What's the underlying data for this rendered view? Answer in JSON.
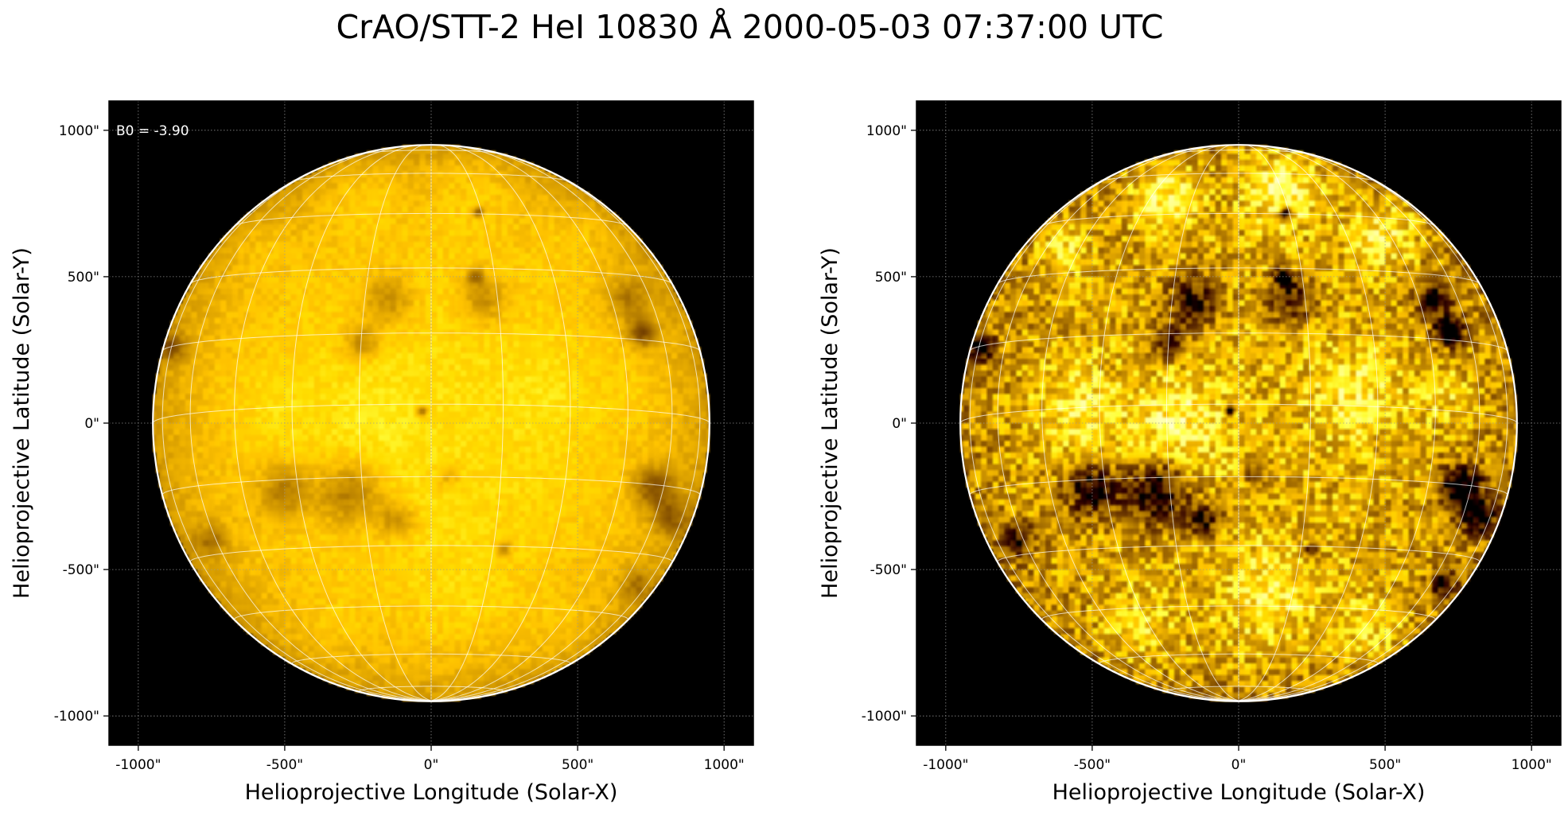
{
  "figure": {
    "title": "CrAO/STT-2 HeI 10830 Å 2000-05-03 07:37:00 UTC"
  },
  "panels": [
    {
      "id": "left",
      "annotation": "B0 = -3.90",
      "xlabel": "Helioprojective Longitude (Solar-X)",
      "ylabel": "Helioprojective Latitude (Solar-Y)",
      "xticks": [
        "-1000\"",
        "-500\"",
        "0\"",
        "500\"",
        "1000\""
      ],
      "yticks": [
        "1000\"",
        "500\"",
        "0\"",
        "-500\"",
        "-1000\""
      ],
      "contrast": "low"
    },
    {
      "id": "right",
      "annotation": "",
      "xlabel": "Helioprojective Longitude (Solar-X)",
      "ylabel": "Helioprojective Latitude (Solar-Y)",
      "xticks": [
        "-1000\"",
        "-500\"",
        "0\"",
        "500\"",
        "1000\""
      ],
      "yticks": [
        "1000\"",
        "500\"",
        "0\"",
        "-500\"",
        "-1000\""
      ],
      "contrast": "high"
    }
  ],
  "image": {
    "colormap": "orange-heat",
    "background_color": "#000000",
    "limb_color": "#ffffff",
    "grid_color": "#ffffff",
    "solar_radius_arcsec": 950,
    "axis_range_arcsec": [
      -1100,
      1100
    ],
    "coordinate_grid": "heliographic",
    "grid_spacing_deg": 15
  },
  "dark_features": [
    {
      "x": 160,
      "y": 720,
      "r": 18,
      "strength": 0.9
    },
    {
      "x": -150,
      "y": 420,
      "r": 90,
      "strength": 0.45
    },
    {
      "x": 180,
      "y": 420,
      "r": 80,
      "strength": 0.45
    },
    {
      "x": 150,
      "y": 500,
      "r": 30,
      "strength": 0.6
    },
    {
      "x": 720,
      "y": 310,
      "r": 45,
      "strength": 0.85
    },
    {
      "x": 670,
      "y": 420,
      "r": 70,
      "strength": 0.45
    },
    {
      "x": -880,
      "y": 260,
      "r": 45,
      "strength": 0.6
    },
    {
      "x": -240,
      "y": 280,
      "r": 60,
      "strength": 0.5
    },
    {
      "x": -30,
      "y": 40,
      "r": 16,
      "strength": 0.85
    },
    {
      "x": -500,
      "y": -230,
      "r": 90,
      "strength": 0.55
    },
    {
      "x": -280,
      "y": -240,
      "r": 110,
      "strength": 0.6
    },
    {
      "x": -120,
      "y": -330,
      "r": 60,
      "strength": 0.45
    },
    {
      "x": 760,
      "y": -220,
      "r": 70,
      "strength": 0.7
    },
    {
      "x": 820,
      "y": -320,
      "r": 60,
      "strength": 0.55
    },
    {
      "x": 250,
      "y": -430,
      "r": 22,
      "strength": 0.6
    },
    {
      "x": -750,
      "y": -400,
      "r": 55,
      "strength": 0.45
    },
    {
      "x": 700,
      "y": -550,
      "r": 50,
      "strength": 0.4
    },
    {
      "x": 60,
      "y": -180,
      "r": 40,
      "strength": 0.3
    }
  ],
  "bright_features": [
    {
      "x": -250,
      "y": 780,
      "r": 120,
      "strength": 0.7
    },
    {
      "x": 150,
      "y": 800,
      "r": 140,
      "strength": 0.7
    },
    {
      "x": 500,
      "y": 650,
      "r": 120,
      "strength": 0.6
    },
    {
      "x": -600,
      "y": 600,
      "r": 100,
      "strength": 0.55
    },
    {
      "x": -550,
      "y": 50,
      "r": 150,
      "strength": 0.5
    },
    {
      "x": -200,
      "y": 0,
      "r": 160,
      "strength": 0.55
    },
    {
      "x": 400,
      "y": 100,
      "r": 150,
      "strength": 0.5
    },
    {
      "x": 100,
      "y": -600,
      "r": 180,
      "strength": 0.5
    },
    {
      "x": -350,
      "y": -700,
      "r": 120,
      "strength": 0.45
    },
    {
      "x": 450,
      "y": -700,
      "r": 120,
      "strength": 0.45
    },
    {
      "x": 700,
      "y": 100,
      "r": 90,
      "strength": 0.4
    }
  ]
}
